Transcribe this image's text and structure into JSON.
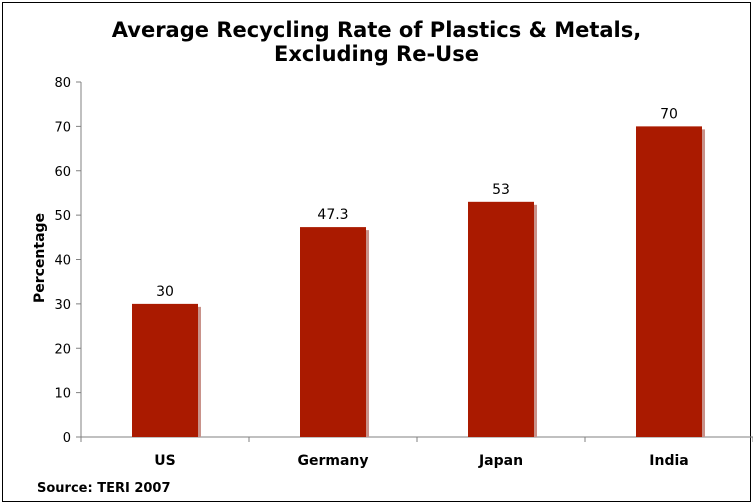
{
  "chart_data": {
    "type": "bar",
    "title_lines": [
      "Average Recycling Rate of Plastics & Metals,",
      "Excluding Re-Use"
    ],
    "ylabel": "Percentage",
    "xlabel": "",
    "categories": [
      "US",
      "Germany",
      "Japan",
      "India"
    ],
    "values": [
      30,
      47.3,
      53,
      70
    ],
    "value_labels": [
      "30",
      "47.3",
      "53",
      "70"
    ],
    "ylim": [
      0,
      80
    ],
    "yticks": [
      0,
      10,
      20,
      30,
      40,
      50,
      60,
      70,
      80
    ],
    "grid": false,
    "legend": "none",
    "bar_color": "#AA1A00",
    "bar_shadow_color": "#C9928A",
    "source": "Source: TERI 2007"
  }
}
